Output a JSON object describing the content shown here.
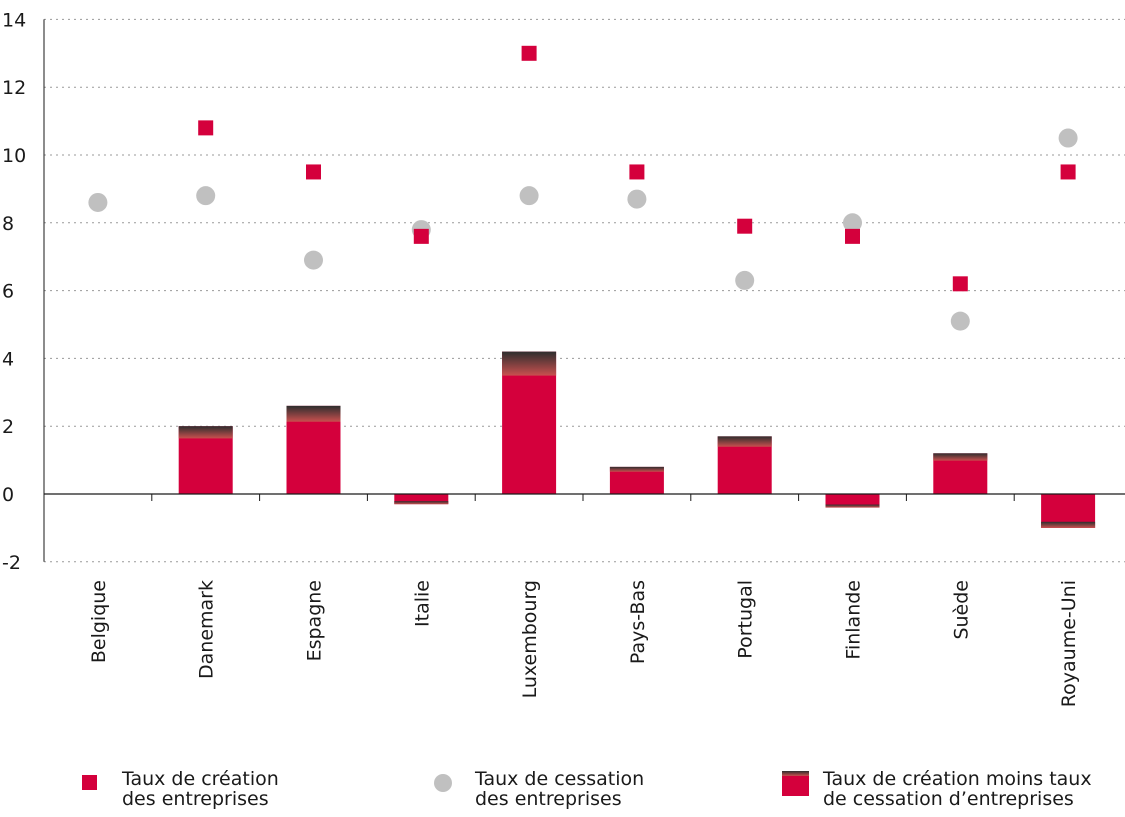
{
  "chart_data": {
    "type": "bar",
    "categories": [
      "Belgique",
      "Danemark",
      "Espagne",
      "Italie",
      "Luxembourg",
      "Pays-Bas",
      "Portugal",
      "Finlande",
      "Suède",
      "Royaume-Uni"
    ],
    "series": [
      {
        "name": "Taux de création des entreprises",
        "kind": "scatter-square",
        "values": [
          null,
          10.8,
          9.5,
          7.6,
          13.0,
          9.5,
          7.9,
          7.6,
          6.2,
          9.5
        ]
      },
      {
        "name": "Taux de cessation des entreprises",
        "kind": "scatter-circle",
        "values": [
          8.6,
          8.8,
          6.9,
          7.8,
          8.8,
          8.7,
          6.3,
          8.0,
          5.1,
          10.5
        ]
      },
      {
        "name": "Taux de création moins taux de cessation d'entreprises",
        "kind": "bar",
        "values": [
          null,
          2.0,
          2.6,
          -0.3,
          4.2,
          0.8,
          1.7,
          -0.4,
          1.2,
          -1.0
        ]
      }
    ],
    "ylim": [
      -2,
      14
    ],
    "yticks": [
      -2,
      0,
      2,
      4,
      6,
      8,
      10,
      12,
      14
    ],
    "grid": true,
    "legend_position": "bottom",
    "colors": {
      "creation": "#d4003c",
      "cessation": "#c0c0c0",
      "bar_top_dark": "#3a3a3a"
    }
  },
  "legend": [
    {
      "line1": "Taux de création",
      "line2": "des entreprises"
    },
    {
      "line1": "Taux de cessation",
      "line2": "des entreprises"
    },
    {
      "line1": "Taux de création moins taux",
      "line2": "de cessation d’entreprises"
    }
  ]
}
